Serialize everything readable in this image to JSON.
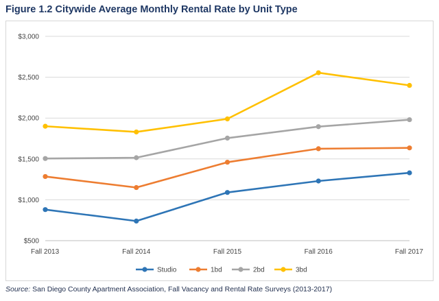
{
  "figure": {
    "title": "Figure 1.2 Citywide Average Monthly Rental Rate by Unit Type",
    "source_label": "Source:",
    "source_text": " San Diego County Apartment Association, Fall Vacancy and Rental Rate Surveys (2013-2017)"
  },
  "chart_data": {
    "type": "line",
    "title": "Figure 1.2 Citywide Average Monthly Rental Rate by Unit Type",
    "xlabel": "",
    "ylabel": "",
    "categories": [
      "Fall 2013",
      "Fall 2014",
      "Fall 2015",
      "Fall 2016",
      "Fall 2017"
    ],
    "ylim": [
      500,
      3000
    ],
    "yticks": [
      500,
      1000,
      1500,
      2000,
      2500,
      3000
    ],
    "ytick_labels": [
      "$500",
      "$1,000",
      "$1,500",
      "$2,000",
      "$2,500",
      "$3,000"
    ],
    "grid": true,
    "legend": "bottom",
    "series": [
      {
        "name": "Studio",
        "color": "#2e75b6",
        "values": [
          880,
          740,
          1090,
          1230,
          1330
        ]
      },
      {
        "name": "1bd",
        "color": "#ed7d31",
        "values": [
          1285,
          1150,
          1460,
          1625,
          1635
        ]
      },
      {
        "name": "2bd",
        "color": "#a5a5a5",
        "values": [
          1505,
          1515,
          1755,
          1895,
          1980
        ]
      },
      {
        "name": "3bd",
        "color": "#ffc000",
        "values": [
          1900,
          1830,
          1990,
          2555,
          2400
        ]
      }
    ]
  }
}
